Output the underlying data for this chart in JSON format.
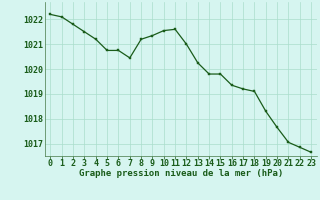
{
  "x": [
    0,
    1,
    2,
    3,
    4,
    5,
    6,
    7,
    8,
    9,
    10,
    11,
    12,
    13,
    14,
    15,
    16,
    17,
    18,
    19,
    20,
    21,
    22,
    23
  ],
  "y": [
    1022.2,
    1022.1,
    1021.8,
    1021.5,
    1021.2,
    1020.75,
    1020.75,
    1020.45,
    1021.2,
    1021.35,
    1021.55,
    1021.6,
    1021.0,
    1020.25,
    1019.8,
    1019.8,
    1019.35,
    1019.2,
    1019.1,
    1018.3,
    1017.65,
    1017.05,
    1016.85,
    1016.65
  ],
  "line_color": "#1a5c1a",
  "marker_color": "#1a5c1a",
  "bg_color": "#d6f5f0",
  "grid_color": "#aaddcc",
  "text_color": "#1a5c1a",
  "xlabel": "Graphe pression niveau de la mer (hPa)",
  "ylim_min": 1016.5,
  "ylim_max": 1022.7,
  "yticks": [
    1017,
    1018,
    1019,
    1020,
    1021,
    1022
  ],
  "xticks": [
    0,
    1,
    2,
    3,
    4,
    5,
    6,
    7,
    8,
    9,
    10,
    11,
    12,
    13,
    14,
    15,
    16,
    17,
    18,
    19,
    20,
    21,
    22,
    23
  ],
  "xlabel_fontsize": 6.5,
  "tick_fontsize": 6.0
}
